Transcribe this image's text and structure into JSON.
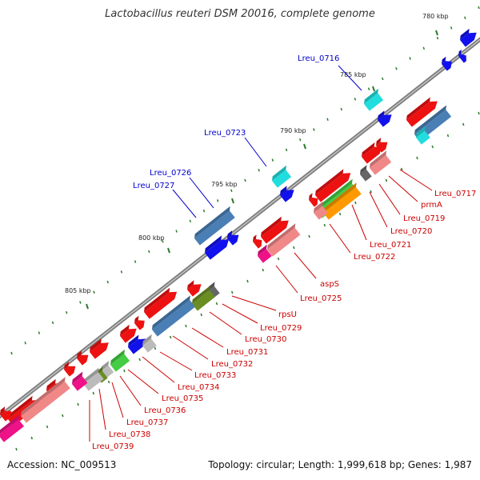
{
  "header": {
    "title": "Lactobacillus reuteri DSM 20016, complete genome"
  },
  "footer": {
    "accession": "Accession: NC_009513",
    "summary": "Topology: circular; Length: 1,999,618 bp; Genes: 1,987"
  },
  "colors": {
    "backbone": "#7f7f7f",
    "red": "#ee1111",
    "pink": "#f08888",
    "blue": "#1111ee",
    "steelblue": "#4a7fb5",
    "cyan": "#22dddd",
    "green": "#44cc44",
    "orange": "#ff9900",
    "olive": "#6b8e23",
    "magenta": "#ee1188",
    "gray": "#666666",
    "lightgray": "#bbbbbb",
    "label_red": "#cc0000",
    "label_blue": "#0000cc",
    "tick": "#2a7a2a"
  },
  "map": {
    "tick_labels": [
      "780 kbp",
      "785 kbp",
      "790 kbp",
      "795 kbp",
      "800 kbp",
      "805 kbp"
    ],
    "labels_top": [
      "Lreu_0716",
      "Lreu_0723",
      "Lreu_0726",
      "Lreu_0727"
    ],
    "labels_bottom": [
      "Lreu_0717",
      "prmA",
      "Lreu_0719",
      "Lreu_0720",
      "Lreu_0721",
      "Lreu_0722",
      "aspS",
      "Lreu_0725",
      "rpsU",
      "Lreu_0729",
      "Lreu_0730",
      "Lreu_0731",
      "Lreu_0732",
      "Lreu_0733",
      "Lreu_0734",
      "Lreu_0735",
      "Lreu_0736",
      "Lreu_0737",
      "Lreu_0738",
      "Lreu_0739"
    ]
  }
}
